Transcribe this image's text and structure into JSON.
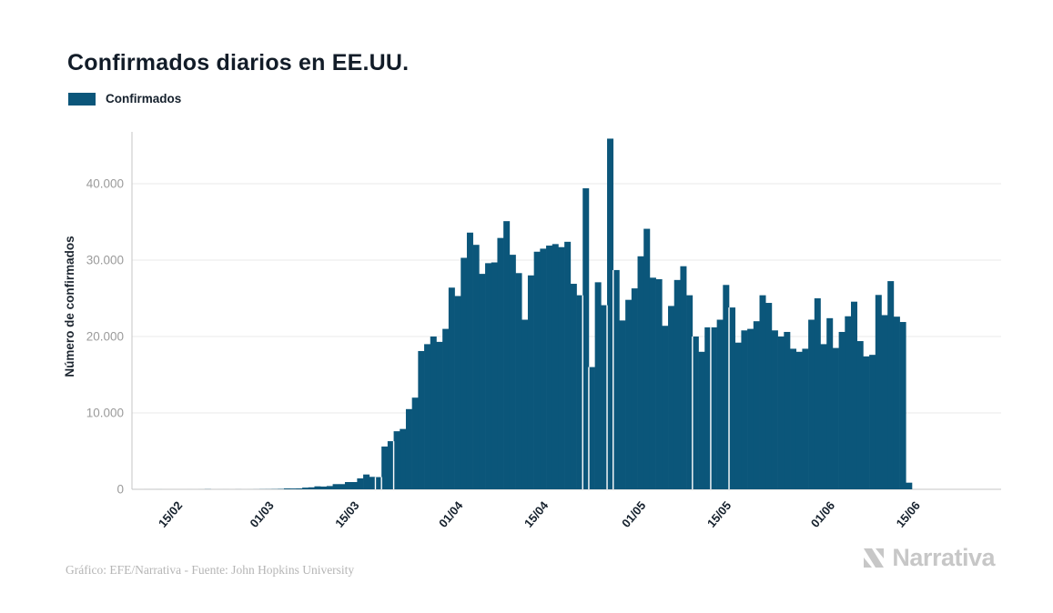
{
  "title": "Confirmados diarios en EE.UU.",
  "legend": {
    "label": "Confirmados",
    "color": "#0b567a"
  },
  "footer": {
    "credit": "Gráfico: EFE/Narrativa - Fuente: John Hopkins University"
  },
  "logo": {
    "text": "Narrativa",
    "icon": "narrativa-n-icon",
    "color": "#c7c7c7"
  },
  "chart_data": {
    "type": "bar",
    "title": "Confirmados diarios en EE.UU.",
    "xlabel": "",
    "ylabel": "Número de confirmados",
    "legend_position": "top-left",
    "grid": true,
    "bar_color": "#0b567a",
    "ylim": [
      0,
      46800
    ],
    "start_date": "2020-02-09",
    "end_date": "2020-06-15",
    "y_ticks": [
      {
        "value": 0,
        "label": "0"
      },
      {
        "value": 10000,
        "label": "10.000"
      },
      {
        "value": 20000,
        "label": "20.000"
      },
      {
        "value": 30000,
        "label": "30.000"
      },
      {
        "value": 40000,
        "label": "40.000"
      }
    ],
    "x_ticks": [
      {
        "index": 6,
        "label": "15/02"
      },
      {
        "index": 21,
        "label": "01/03"
      },
      {
        "index": 35,
        "label": "15/03"
      },
      {
        "index": 52,
        "label": "01/04"
      },
      {
        "index": 66,
        "label": "15/04"
      },
      {
        "index": 82,
        "label": "01/05"
      },
      {
        "index": 96,
        "label": "15/05"
      },
      {
        "index": 113,
        "label": "01/06"
      },
      {
        "index": 127,
        "label": "15/06"
      }
    ],
    "series": [
      {
        "name": "Confirmados",
        "values": [
          1,
          0,
          2,
          1,
          3,
          0,
          0,
          0,
          0,
          1,
          0,
          3,
          19,
          0,
          1,
          2,
          0,
          6,
          1,
          3,
          8,
          20,
          24,
          34,
          54,
          114,
          107,
          118,
          218,
          259,
          390,
          360,
          430,
          680,
          680,
          950,
          950,
          1430,
          1940,
          1630,
          1600,
          5600,
          6300,
          7600,
          7900,
          10500,
          12000,
          18100,
          19000,
          20000,
          19300,
          21000,
          26400,
          25300,
          30300,
          33600,
          32000,
          28200,
          29600,
          29700,
          32900,
          35100,
          30700,
          28300,
          22200,
          28000,
          31100,
          31500,
          31900,
          32100,
          31700,
          32400,
          26900,
          25400,
          39400,
          16000,
          27100,
          24100,
          45900,
          28700,
          22100,
          24800,
          26300,
          30500,
          34100,
          27700,
          27500,
          21400,
          24000,
          27400,
          29200,
          25400,
          20000,
          18000,
          21200,
          21200,
          22200,
          26750,
          23800,
          19200,
          20800,
          21000,
          22000,
          25400,
          24400,
          20800,
          20000,
          20600,
          18400,
          18000,
          18400,
          22200,
          25000,
          19000,
          22400,
          18500,
          20600,
          22650,
          24560,
          19400,
          17400,
          17600,
          25440,
          22800,
          27250,
          22600,
          21900,
          870
        ]
      }
    ],
    "gap_after_indices": [
      39,
      40,
      42,
      73,
      74,
      77,
      78,
      91,
      94,
      97
    ]
  }
}
